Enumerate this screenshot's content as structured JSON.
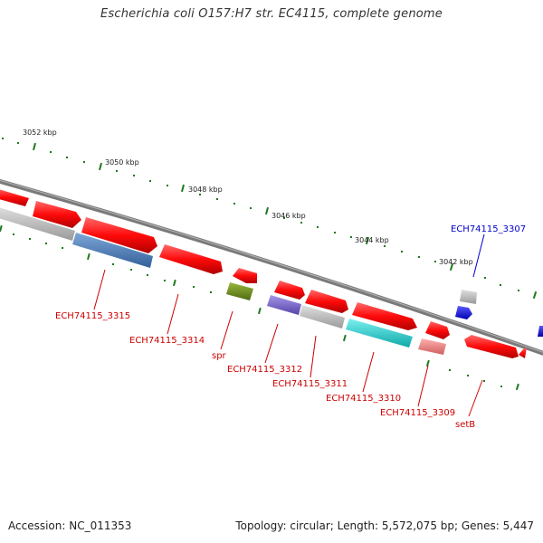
{
  "title": "Escherichia coli O157:H7 str. EC4115, complete genome",
  "footer": {
    "accession": "Accession: NC_011353",
    "topology": "Topology: circular; Length: 5,572,075 bp; Genes: 5,447"
  },
  "ticks": [
    "3052 kbp",
    "3050 kbp",
    "3048 kbp",
    "3046 kbp",
    "3044 kbp",
    "3042 kbp"
  ],
  "colors": {
    "backbone": "#7a7a7a",
    "cds_red": "#ff1010",
    "gene_grey": "#bdbdbd",
    "steelblue": "#4e7db8",
    "olive": "#6e8c1e",
    "purple": "#7a66c8",
    "cyan": "#28d0d0",
    "salmon": "#f08080",
    "blue": "#1a1aff",
    "tick_green": "#1c7a1c",
    "label_red": "#cc0000",
    "label_blue": "#0000cc"
  },
  "genes": [
    {
      "id": "ECH74115_3315",
      "color": "label_red"
    },
    {
      "id": "ECH74115_3314",
      "color": "label_red"
    },
    {
      "id": "spr",
      "color": "label_red"
    },
    {
      "id": "ECH74115_3312",
      "color": "label_red"
    },
    {
      "id": "ECH74115_3311",
      "color": "label_red"
    },
    {
      "id": "ECH74115_3310",
      "color": "label_red"
    },
    {
      "id": "ECH74115_3309",
      "color": "label_red"
    },
    {
      "id": "setB",
      "color": "label_red"
    },
    {
      "id": "ECH74115_3307",
      "color": "label_blue"
    }
  ]
}
